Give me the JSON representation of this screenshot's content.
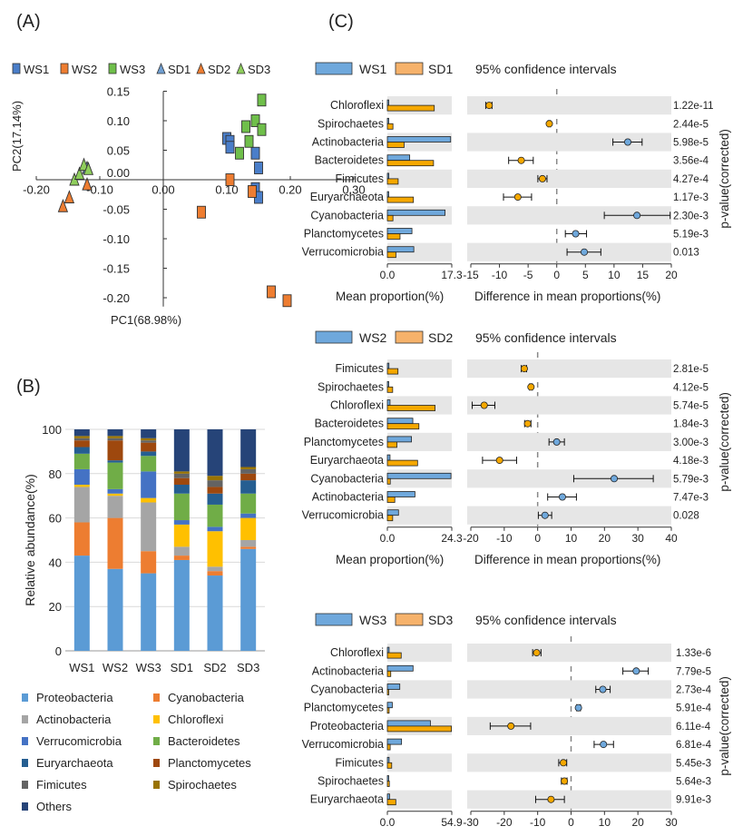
{
  "colors": {
    "WS1": "#4a7ec9",
    "WS2": "#ee7d31",
    "WS3": "#6fbf4a",
    "SD1": "#6f9ed1",
    "SD2": "#ee7d31",
    "SD3": "#8fce5c",
    "stf_ws": "#6fa8dc",
    "stf_sd": "#f6a800",
    "band": "#e6e6e6"
  },
  "panels": {
    "A": "(A)",
    "B": "(B)",
    "C": "(C)"
  },
  "chart_data": [
    {
      "type": "scatter",
      "panel": "A",
      "legend": [
        "WS1",
        "WS2",
        "WS3",
        "SD1",
        "SD2",
        "SD3"
      ],
      "xlabel": "PC1(68.98%)",
      "ylabel": "PC2(17.14%)",
      "xlim": [
        -0.2,
        0.3
      ],
      "ylim": [
        -0.22,
        0.15
      ],
      "xticks": [
        -0.2,
        -0.1,
        0.0,
        0.1,
        0.2,
        0.3
      ],
      "xtick_labels": [
        "-0.20",
        "-0.10",
        "0.00",
        "0.10",
        "0.20",
        "0.30"
      ],
      "yticks": [
        0.15,
        0.1,
        0.05,
        0.0,
        -0.05,
        -0.1,
        -0.15,
        -0.2
      ],
      "ytick_labels": [
        "0.15",
        "0.10",
        "0.05",
        "0.00",
        "-0.05",
        "-0.10",
        "-0.15",
        "-0.20"
      ],
      "series": [
        {
          "name": "WS1",
          "marker": "square",
          "points": [
            [
              0.1,
              0.07
            ],
            [
              0.105,
              0.065
            ],
            [
              0.105,
              0.055
            ],
            [
              0.145,
              0.045
            ],
            [
              0.15,
              0.02
            ],
            [
              0.145,
              -0.015
            ],
            [
              0.15,
              -0.03
            ]
          ]
        },
        {
          "name": "WS2",
          "marker": "square",
          "points": [
            [
              0.06,
              -0.055
            ],
            [
              0.105,
              0.0
            ],
            [
              0.14,
              -0.02
            ],
            [
              0.17,
              -0.19
            ],
            [
              0.195,
              -0.205
            ]
          ]
        },
        {
          "name": "WS3",
          "marker": "square",
          "points": [
            [
              0.13,
              0.09
            ],
            [
              0.145,
              0.1
            ],
            [
              0.155,
              0.135
            ],
            [
              0.155,
              0.085
            ],
            [
              0.135,
              0.065
            ],
            [
              0.12,
              0.045
            ]
          ]
        },
        {
          "name": "SD1",
          "marker": "triangle",
          "points": [
            [
              -0.12,
              0.02
            ]
          ]
        },
        {
          "name": "SD2",
          "marker": "triangle",
          "points": [
            [
              -0.158,
              -0.045
            ],
            [
              -0.148,
              -0.03
            ],
            [
              -0.12,
              -0.008
            ]
          ]
        },
        {
          "name": "SD3",
          "marker": "triangle",
          "points": [
            [
              -0.14,
              0.0
            ],
            [
              -0.132,
              0.01
            ],
            [
              -0.125,
              0.025
            ],
            [
              -0.118,
              0.018
            ]
          ]
        }
      ]
    },
    {
      "type": "bar",
      "stacked": true,
      "panel": "B",
      "categories": [
        "WS1",
        "WS2",
        "WS3",
        "SD1",
        "SD2",
        "SD3"
      ],
      "ylabel": "Relative abundance(%)",
      "ylim": [
        0,
        100
      ],
      "yticks": [
        0,
        20,
        40,
        60,
        80,
        100
      ],
      "series": [
        {
          "name": "Proteobacteria",
          "color": "#5b9bd5",
          "values": [
            43,
            37,
            35,
            41,
            34,
            46
          ]
        },
        {
          "name": "Cyanobacteria",
          "color": "#ed7d31",
          "values": [
            15,
            23,
            10,
            2,
            2,
            1
          ]
        },
        {
          "name": "Actinobacteria",
          "color": "#a5a5a5",
          "values": [
            16,
            10,
            22,
            4,
            2,
            3
          ]
        },
        {
          "name": "Chloroflexi",
          "color": "#ffc000",
          "values": [
            1,
            1,
            2,
            10,
            16,
            10
          ]
        },
        {
          "name": "Verrucomicrobia",
          "color": "#4472c4",
          "values": [
            7,
            2,
            12,
            2,
            2,
            2
          ]
        },
        {
          "name": "Bacteroidetes",
          "color": "#70ad47",
          "values": [
            7,
            12,
            7,
            12,
            10,
            9
          ]
        },
        {
          "name": "Euryarchaeota",
          "color": "#255e91",
          "values": [
            3,
            1,
            2,
            4,
            5,
            6
          ]
        },
        {
          "name": "Planctomycetes",
          "color": "#9e480e",
          "values": [
            3,
            9,
            4,
            3,
            3,
            3
          ]
        },
        {
          "name": "Fimicutes",
          "color": "#636363",
          "values": [
            1,
            1,
            1,
            2,
            3,
            2
          ]
        },
        {
          "name": "Spirochaetes",
          "color": "#997300",
          "values": [
            1,
            1,
            1,
            1,
            2,
            1
          ]
        },
        {
          "name": "Others",
          "color": "#264478",
          "values": [
            3,
            3,
            4,
            19,
            21,
            17
          ]
        }
      ]
    },
    {
      "type": "bar",
      "panel": "C1",
      "group1": "WS1",
      "group2": "SD1",
      "ci_label": "95% confidence intervals",
      "xlabel_left": "Mean proportion(%)",
      "xlabel_right": "Difference in mean proportions(%)",
      "pvalue_label": "p-value(corrected)",
      "mean_xmax": 17.3,
      "mean_tick_labels": [
        "0.0",
        "17.3"
      ],
      "diff_xlim": [
        -15,
        20
      ],
      "diff_ticks": [
        -15,
        -10,
        -5,
        0,
        5,
        10,
        15,
        20
      ],
      "categories": [
        "Chloroflexi",
        "Spirochaetes",
        "Actinobacteria",
        "Bacteroidetes",
        "Fimicutes",
        "Euryarchaeota",
        "Cyanobacteria",
        "Planctomycetes",
        "Verrucomicrobia"
      ],
      "mean1": [
        0.3,
        0.1,
        17.0,
        6.0,
        0.4,
        0.2,
        15.5,
        6.6,
        7.1
      ],
      "mean2": [
        12.6,
        1.5,
        4.5,
        12.4,
        2.9,
        7.0,
        1.5,
        3.4,
        2.3
      ],
      "diff": [
        -11.8,
        -1.3,
        12.4,
        -6.2,
        -2.5,
        -6.8,
        14.0,
        3.3,
        4.8
      ],
      "ci_low": [
        -12.4,
        -1.5,
        9.8,
        -8.4,
        -3.3,
        -9.3,
        8.3,
        1.5,
        1.8
      ],
      "ci_high": [
        -11.3,
        -1.1,
        14.9,
        -4.1,
        -1.7,
        -4.4,
        19.8,
        5.2,
        7.7
      ],
      "pvalues": [
        "1.22e-11",
        "2.44e-5",
        "5.98e-5",
        "3.56e-4",
        "4.27e-4",
        "1.17e-3",
        "2.30e-3",
        "5.19e-3",
        "0.013"
      ]
    },
    {
      "type": "bar",
      "panel": "C2",
      "group1": "WS2",
      "group2": "SD2",
      "ci_label": "95% confidence intervals",
      "xlabel_left": "Mean proportion(%)",
      "xlabel_right": "Difference in mean proportions(%)",
      "pvalue_label": "p-value(corrected)",
      "mean_xmax": 24.3,
      "mean_tick_labels": [
        "0.0",
        "24.3"
      ],
      "diff_xlim": [
        -20,
        40
      ],
      "diff_ticks": [
        -20,
        -10,
        0,
        10,
        20,
        30,
        40
      ],
      "categories": [
        "Fimicutes",
        "Spirochaetes",
        "Chloroflexi",
        "Bacteroidetes",
        "Planctomycetes",
        "Euryarchaeota",
        "Cyanobacteria",
        "Actinobacteria",
        "Verrucomicrobia"
      ],
      "mean1": [
        0.6,
        0.4,
        1.0,
        9.6,
        9.1,
        1.0,
        24.0,
        10.4,
        4.2
      ],
      "mean2": [
        4.0,
        2.0,
        18.0,
        11.9,
        3.6,
        11.4,
        1.1,
        2.8,
        2.0
      ],
      "diff": [
        -4.0,
        -2.0,
        -16.0,
        -3.0,
        5.7,
        -11.4,
        22.9,
        7.4,
        2.2
      ],
      "ci_low": [
        -4.9,
        -2.4,
        -19.6,
        -3.9,
        3.4,
        -16.5,
        10.8,
        3.0,
        0.2
      ],
      "ci_high": [
        -3.3,
        -1.6,
        -12.8,
        -2.0,
        8.0,
        -6.3,
        34.6,
        11.6,
        4.2
      ],
      "pvalues": [
        "2.81e-5",
        "4.12e-5",
        "5.74e-5",
        "1.84e-3",
        "3.00e-3",
        "4.18e-3",
        "5.79e-3",
        "7.47e-3",
        "0.028"
      ]
    },
    {
      "type": "bar",
      "panel": "C3",
      "group1": "WS3",
      "group2": "SD3",
      "ci_label": "95% confidence intervals",
      "xlabel_left": "Mean proportion(%)",
      "xlabel_right": "Difference in mean proportions(%)",
      "pvalue_label": "p-value(corrected)",
      "mean_xmax": 54.9,
      "mean_tick_labels": [
        "0.0",
        "54.9"
      ],
      "diff_xlim": [
        -30,
        30
      ],
      "diff_ticks": [
        -30,
        -20,
        -10,
        0,
        10,
        20,
        30
      ],
      "categories": [
        "Chloroflexi",
        "Actinobacteria",
        "Cyanobacteria",
        "Planctomycetes",
        "Proteobacteria",
        "Verrucomicrobia",
        "Fimicutes",
        "Spirochaetes",
        "Euryarchaeota"
      ],
      "mean1": [
        1.5,
        21.9,
        10.6,
        4.2,
        36.7,
        12.1,
        1.5,
        0.9,
        1.9
      ],
      "mean2": [
        11.8,
        2.9,
        1.1,
        1.5,
        54.6,
        2.4,
        3.7,
        1.7,
        7.2
      ],
      "diff": [
        -10.3,
        19.5,
        9.5,
        2.2,
        -18.0,
        9.7,
        -2.3,
        -2.0,
        -6.0
      ],
      "ci_low": [
        -11.5,
        15.5,
        7.4,
        1.7,
        -24.2,
        6.9,
        -3.7,
        -2.9,
        -10.6
      ],
      "ci_high": [
        -9.0,
        23.1,
        11.7,
        2.8,
        -12.1,
        12.7,
        -1.3,
        -1.2,
        -2.0
      ],
      "pvalues": [
        "1.33e-6",
        "7.79e-5",
        "2.73e-4",
        "5.91e-4",
        "6.11e-4",
        "6.81e-4",
        "5.45e-3",
        "5.64e-3",
        "9.91e-3"
      ]
    }
  ]
}
